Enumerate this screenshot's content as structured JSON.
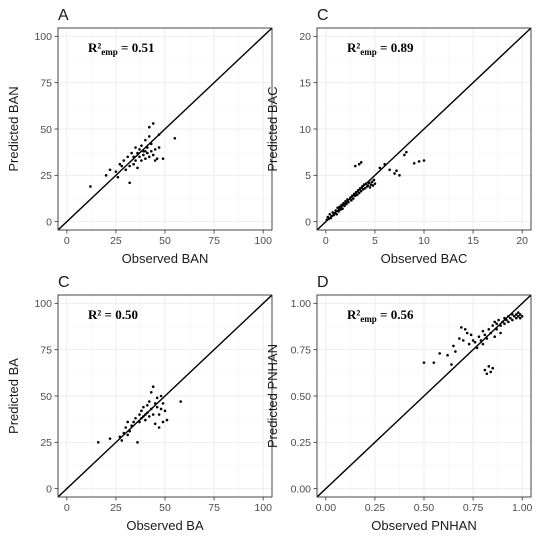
{
  "chart_data": [
    {
      "type": "scatter",
      "panel_label": "A",
      "xlabel": "Observed BAN",
      "ylabel": "Predicted BAN",
      "annotation": {
        "r2": "R²",
        "sub": "emp",
        "value": " = 0.51"
      },
      "xlim": [
        0,
        100
      ],
      "ylim": [
        0,
        100
      ],
      "xticks": [
        0,
        25,
        50,
        75,
        100
      ],
      "yticks": [
        0,
        25,
        50,
        75,
        100
      ],
      "xtick_labels": [
        "0",
        "25",
        "50",
        "75",
        "100"
      ],
      "ytick_labels": [
        "0",
        "25",
        "50",
        "75",
        "100"
      ],
      "reference_line": "identity",
      "points": [
        [
          12,
          19
        ],
        [
          20,
          25
        ],
        [
          22,
          28
        ],
        [
          25,
          27
        ],
        [
          26,
          24
        ],
        [
          27,
          31
        ],
        [
          28,
          30
        ],
        [
          29,
          33
        ],
        [
          30,
          28
        ],
        [
          31,
          35
        ],
        [
          32,
          30
        ],
        [
          32,
          21
        ],
        [
          33,
          37
        ],
        [
          34,
          35
        ],
        [
          34,
          31
        ],
        [
          35,
          40
        ],
        [
          35,
          33
        ],
        [
          36,
          37
        ],
        [
          36,
          29
        ],
        [
          37,
          39
        ],
        [
          37,
          35
        ],
        [
          38,
          41
        ],
        [
          38,
          33
        ],
        [
          39,
          38
        ],
        [
          39,
          36
        ],
        [
          40,
          44
        ],
        [
          40,
          38
        ],
        [
          40,
          34
        ],
        [
          41,
          40
        ],
        [
          41,
          37
        ],
        [
          42,
          46
        ],
        [
          42,
          35
        ],
        [
          43,
          38
        ],
        [
          43,
          42
        ],
        [
          44,
          36
        ],
        [
          45,
          39
        ],
        [
          45,
          33
        ],
        [
          46,
          34
        ],
        [
          47,
          47
        ],
        [
          47,
          40
        ],
        [
          49,
          34
        ],
        [
          42,
          51
        ],
        [
          44,
          53
        ],
        [
          55,
          45
        ]
      ]
    },
    {
      "type": "scatter",
      "panel_label": "C",
      "xlabel": "Observed BAC",
      "ylabel": "Predicted BAC",
      "annotation": {
        "r2": "R²",
        "sub": "emp",
        "value": " = 0.89"
      },
      "xlim": [
        0,
        20
      ],
      "ylim": [
        0,
        20
      ],
      "xticks": [
        0,
        5,
        10,
        15,
        20
      ],
      "yticks": [
        0,
        5,
        10,
        15,
        20
      ],
      "xtick_labels": [
        "0",
        "5",
        "10",
        "15",
        "20"
      ],
      "ytick_labels": [
        "0",
        "5",
        "10",
        "15",
        "20"
      ],
      "reference_line": "identity",
      "points": [
        [
          0.1,
          0.2
        ],
        [
          0.2,
          0.5
        ],
        [
          0.3,
          0.3
        ],
        [
          0.4,
          0.8
        ],
        [
          0.5,
          0.4
        ],
        [
          0.6,
          0.6
        ],
        [
          0.7,
          1.0
        ],
        [
          0.8,
          0.7
        ],
        [
          0.9,
          0.9
        ],
        [
          1.0,
          1.2
        ],
        [
          1.1,
          0.8
        ],
        [
          1.2,
          1.5
        ],
        [
          1.3,
          1.1
        ],
        [
          1.4,
          1.6
        ],
        [
          1.5,
          1.3
        ],
        [
          1.6,
          1.8
        ],
        [
          1.7,
          1.4
        ],
        [
          1.8,
          2.0
        ],
        [
          1.9,
          1.7
        ],
        [
          2.0,
          2.2
        ],
        [
          2.1,
          1.9
        ],
        [
          2.2,
          2.4
        ],
        [
          2.3,
          2.1
        ],
        [
          2.5,
          2.6
        ],
        [
          2.6,
          2.3
        ],
        [
          2.7,
          2.8
        ],
        [
          2.8,
          2.5
        ],
        [
          2.9,
          3.0
        ],
        [
          3.0,
          2.8
        ],
        [
          3.1,
          3.2
        ],
        [
          3.2,
          2.9
        ],
        [
          3.3,
          3.4
        ],
        [
          3.4,
          3.1
        ],
        [
          3.5,
          3.6
        ],
        [
          3.6,
          3.3
        ],
        [
          3.7,
          3.8
        ],
        [
          3.8,
          3.5
        ],
        [
          3.9,
          4.0
        ],
        [
          4.0,
          3.6
        ],
        [
          4.1,
          4.1
        ],
        [
          4.2,
          3.8
        ],
        [
          4.3,
          3.9
        ],
        [
          4.4,
          4.2
        ],
        [
          4.5,
          3.7
        ],
        [
          4.6,
          4.0
        ],
        [
          4.7,
          4.3
        ],
        [
          4.8,
          3.9
        ],
        [
          5.0,
          4.1
        ],
        [
          4.9,
          4.5
        ],
        [
          3.0,
          6.0
        ],
        [
          3.4,
          6.2
        ],
        [
          3.6,
          6.4
        ],
        [
          5.5,
          5.8
        ],
        [
          6.0,
          6.2
        ],
        [
          6.5,
          5.6
        ],
        [
          7.0,
          5.2
        ],
        [
          7.2,
          5.5
        ],
        [
          7.5,
          5.0
        ],
        [
          8.0,
          7.2
        ],
        [
          8.2,
          7.5
        ],
        [
          9.0,
          6.3
        ],
        [
          9.5,
          6.5
        ],
        [
          10.0,
          6.6
        ]
      ]
    },
    {
      "type": "scatter",
      "panel_label": "C",
      "xlabel": "Observed BA",
      "ylabel": "Predicted BA",
      "annotation": {
        "r2": "R²",
        "sub": "",
        "value": " = 0.50"
      },
      "xlim": [
        0,
        100
      ],
      "ylim": [
        0,
        100
      ],
      "xticks": [
        0,
        25,
        50,
        75,
        100
      ],
      "yticks": [
        0,
        25,
        50,
        75,
        100
      ],
      "xtick_labels": [
        "0",
        "25",
        "50",
        "75",
        "100"
      ],
      "ytick_labels": [
        "0",
        "25",
        "50",
        "75",
        "100"
      ],
      "reference_line": "identity",
      "points": [
        [
          16,
          25
        ],
        [
          22,
          27
        ],
        [
          27,
          28
        ],
        [
          28,
          26
        ],
        [
          29,
          30
        ],
        [
          30,
          33
        ],
        [
          31,
          29
        ],
        [
          31,
          36
        ],
        [
          32,
          31
        ],
        [
          33,
          34
        ],
        [
          34,
          36
        ],
        [
          35,
          38
        ],
        [
          36,
          25
        ],
        [
          37,
          40
        ],
        [
          37,
          36
        ],
        [
          38,
          42
        ],
        [
          38,
          38
        ],
        [
          39,
          39
        ],
        [
          39,
          44
        ],
        [
          40,
          40
        ],
        [
          40,
          37
        ],
        [
          41,
          41
        ],
        [
          41,
          45
        ],
        [
          42,
          39
        ],
        [
          42,
          47
        ],
        [
          43,
          43
        ],
        [
          43,
          52
        ],
        [
          44,
          40
        ],
        [
          44,
          55
        ],
        [
          45,
          46
        ],
        [
          45,
          35
        ],
        [
          46,
          44
        ],
        [
          46,
          49
        ],
        [
          47,
          40
        ],
        [
          47,
          33
        ],
        [
          48,
          50
        ],
        [
          48,
          43
        ],
        [
          49,
          36
        ],
        [
          49,
          46
        ],
        [
          50,
          42
        ],
        [
          51,
          37
        ],
        [
          58,
          47
        ]
      ]
    },
    {
      "type": "scatter",
      "panel_label": "D",
      "xlabel": "Observed PNHAN",
      "ylabel": "Predicted PNHAN",
      "annotation": {
        "r2": "R²",
        "sub": "emp",
        "value": " = 0.56"
      },
      "xlim": [
        0,
        1
      ],
      "ylim": [
        0,
        1
      ],
      "xticks": [
        0,
        0.25,
        0.5,
        0.75,
        1.0
      ],
      "yticks": [
        0,
        0.25,
        0.5,
        0.75,
        1.0
      ],
      "xtick_labels": [
        "0.00",
        "0.25",
        "0.50",
        "0.75",
        "1.00"
      ],
      "ytick_labels": [
        "0.00",
        "0.25",
        "0.50",
        "0.75",
        "1.00"
      ],
      "reference_line": "identity",
      "points": [
        [
          0.5,
          0.68
        ],
        [
          0.55,
          0.68
        ],
        [
          0.58,
          0.73
        ],
        [
          0.62,
          0.72
        ],
        [
          0.64,
          0.67
        ],
        [
          0.65,
          0.77
        ],
        [
          0.66,
          0.74
        ],
        [
          0.68,
          0.81
        ],
        [
          0.69,
          0.87
        ],
        [
          0.7,
          0.8
        ],
        [
          0.71,
          0.86
        ],
        [
          0.72,
          0.84
        ],
        [
          0.73,
          0.78
        ],
        [
          0.74,
          0.83
        ],
        [
          0.75,
          0.8
        ],
        [
          0.76,
          0.79
        ],
        [
          0.77,
          0.76
        ],
        [
          0.78,
          0.82
        ],
        [
          0.79,
          0.8
        ],
        [
          0.8,
          0.85
        ],
        [
          0.8,
          0.78
        ],
        [
          0.81,
          0.83
        ],
        [
          0.81,
          0.64
        ],
        [
          0.82,
          0.62
        ],
        [
          0.82,
          0.81
        ],
        [
          0.83,
          0.66
        ],
        [
          0.83,
          0.86
        ],
        [
          0.84,
          0.63
        ],
        [
          0.84,
          0.84
        ],
        [
          0.85,
          0.88
        ],
        [
          0.85,
          0.65
        ],
        [
          0.86,
          0.9
        ],
        [
          0.86,
          0.82
        ],
        [
          0.87,
          0.89
        ],
        [
          0.87,
          0.86
        ],
        [
          0.88,
          0.91
        ],
        [
          0.89,
          0.88
        ],
        [
          0.89,
          0.84
        ],
        [
          0.9,
          0.9
        ],
        [
          0.91,
          0.92
        ],
        [
          0.91,
          0.89
        ],
        [
          0.92,
          0.91
        ],
        [
          0.93,
          0.93
        ],
        [
          0.93,
          0.9
        ],
        [
          0.94,
          0.92
        ],
        [
          0.95,
          0.91
        ],
        [
          0.95,
          0.94
        ],
        [
          0.96,
          0.93
        ],
        [
          0.97,
          0.92
        ],
        [
          0.97,
          0.94
        ],
        [
          0.98,
          0.95
        ],
        [
          0.98,
          0.93
        ],
        [
          0.99,
          0.94
        ],
        [
          0.99,
          0.92
        ],
        [
          1.0,
          0.93
        ]
      ]
    }
  ]
}
